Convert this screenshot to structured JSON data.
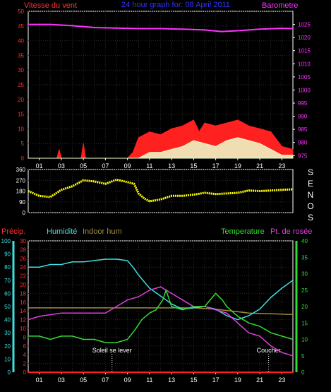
{
  "chart_data": [
    {
      "type": "area",
      "title": "24 hour graph for: 08 April 2011",
      "left_axis": {
        "label": "Vitesse du vent",
        "ticks": [
          0,
          5,
          10,
          15,
          20,
          25,
          30,
          35,
          40,
          45,
          50
        ],
        "ylim": [
          0,
          50
        ],
        "color": "#ff3030"
      },
      "right_axis": {
        "label": "Barometre",
        "ticks": [
          975,
          980,
          985,
          990,
          995,
          1000,
          1005,
          1010,
          1015,
          1020,
          1025
        ],
        "ylim": [
          974,
          1030
        ],
        "color": "#ff33ff"
      },
      "x_ticks": [
        "01",
        "03",
        "05",
        "07",
        "09",
        "11",
        "13",
        "15",
        "17",
        "19",
        "21",
        "23"
      ],
      "grid": true,
      "series": [
        {
          "unit": "hPa",
          "color": "#ff33ff",
          "x": [
            0,
            2,
            4,
            6,
            8,
            10,
            12,
            14,
            16,
            17.5,
            19,
            21,
            23,
            24
          ],
          "values": [
            1025,
            1025,
            1024.5,
            1023.8,
            1023.6,
            1023.4,
            1023.4,
            1023.2,
            1022.9,
            1022.3,
            1022.6,
            1023.2,
            1023.5,
            1023.4
          ]
        },
        {
          "unit": "gust",
          "color": "#ff2020",
          "x": [
            0,
            1.5,
            2.6,
            2.8,
            3.0,
            4.8,
            5.0,
            5.2,
            9.0,
            9.5,
            10,
            11,
            12,
            13,
            14,
            15,
            15.5,
            16,
            17,
            18,
            19,
            20,
            21,
            22,
            23,
            24
          ],
          "values": [
            0,
            0,
            0,
            3,
            0,
            0,
            5,
            0,
            0,
            2,
            7,
            9,
            8,
            10,
            11,
            13,
            9,
            12,
            11,
            12,
            13,
            11,
            10,
            9,
            4,
            3
          ]
        },
        {
          "unit": "avg",
          "color": "#eeffcc",
          "x": [
            0,
            10,
            11,
            12,
            13,
            14,
            15,
            16,
            17,
            18,
            19,
            20,
            21,
            22,
            23,
            24
          ],
          "values": [
            0,
            0,
            2,
            2,
            3,
            4,
            6,
            5,
            4,
            6,
            7,
            6,
            5,
            3,
            1,
            1
          ]
        }
      ]
    },
    {
      "type": "line",
      "title": "",
      "left_axis": {
        "ticks": [
          0,
          90,
          180,
          270,
          360
        ],
        "ylim": [
          0,
          360
        ],
        "color": "#ffffff"
      },
      "right_label": [
        "S",
        "E",
        "N",
        "O",
        "S"
      ],
      "grid": true,
      "series": [
        {
          "unit": "deg",
          "color": "#ffff00",
          "x": [
            0,
            1,
            2,
            3,
            4,
            5,
            6,
            7,
            8,
            9,
            9.6,
            10,
            10.5,
            11,
            12,
            13,
            14,
            15,
            16,
            17,
            18,
            19,
            20,
            21,
            22,
            23,
            24
          ],
          "values": [
            180,
            140,
            130,
            190,
            220,
            270,
            260,
            240,
            275,
            255,
            240,
            160,
            120,
            95,
            110,
            140,
            140,
            150,
            165,
            155,
            160,
            165,
            185,
            180,
            185,
            190,
            195
          ]
        }
      ]
    },
    {
      "type": "line",
      "axis_labels": {
        "precip": "Précip.",
        "humidity": "Humidité",
        "indoor_hum": "Indoor hum",
        "temperature": "Temperature",
        "dewpoint": "Pt. de rosée"
      },
      "axis_precip": {
        "ticks": [
          0,
          2,
          4,
          6,
          8,
          10,
          12,
          14,
          16,
          18,
          20,
          22,
          24,
          26,
          28,
          30
        ],
        "ylim": [
          0,
          30
        ],
        "color": "#ff3030"
      },
      "axis_humidity": {
        "ticks": [
          0,
          10,
          20,
          30,
          40,
          50,
          60,
          70,
          80,
          90,
          100
        ],
        "ylim": [
          0,
          100
        ],
        "color": "#40e0e0"
      },
      "axis_temperature": {
        "ticks": [
          0,
          5,
          10,
          15,
          20,
          25,
          30,
          35,
          40
        ],
        "ylim": [
          0,
          40
        ],
        "color": "#33dd33"
      },
      "annotations": [
        {
          "x": 7.6,
          "text": "Soleil se lever"
        },
        {
          "x": 21.8,
          "text": "Coucher"
        }
      ],
      "grid": true,
      "series": [
        {
          "unit": "humidity",
          "color": "#40e0e0",
          "x": [
            0,
            1,
            2,
            3,
            4,
            5,
            6,
            7,
            8,
            9,
            9.5,
            10,
            11,
            12,
            12.5,
            13,
            14,
            15,
            16,
            17,
            18,
            19,
            20,
            21,
            22,
            23,
            24
          ],
          "values": [
            80,
            80,
            82,
            82,
            84,
            84,
            85,
            86,
            86,
            85,
            80,
            74,
            64,
            58,
            55,
            52,
            48,
            49,
            50,
            48,
            43,
            40,
            43,
            48,
            57,
            64,
            70
          ]
        },
        {
          "unit": "indoor",
          "color": "#a08c3c",
          "x": [
            0,
            8,
            10,
            15,
            17,
            18,
            19,
            20,
            24
          ],
          "values": [
            49,
            49,
            49,
            49,
            48,
            47,
            46,
            45,
            44
          ]
        },
        {
          "unit": "temperature",
          "color": "#33dd33",
          "x": [
            0,
            1,
            2,
            3,
            4,
            5,
            6,
            7,
            8,
            9,
            9.7,
            10.3,
            11,
            11.6,
            12.2,
            12.5,
            13,
            14,
            15,
            16,
            17,
            17.6,
            18,
            19,
            20,
            21,
            22,
            23,
            24
          ],
          "values": [
            11,
            11,
            10,
            11,
            11,
            10,
            10,
            9,
            9,
            10,
            13,
            16,
            18,
            19,
            22,
            25,
            20,
            19,
            20,
            20,
            24,
            22,
            20,
            17,
            15,
            14,
            12,
            11,
            10
          ]
        },
        {
          "unit": "dewpoint",
          "color": "#e040e0",
          "x": [
            0,
            1,
            3,
            5,
            7,
            8,
            9,
            10,
            11,
            12,
            13,
            14,
            15,
            16,
            17,
            18,
            19,
            20,
            21,
            22,
            23,
            24
          ],
          "values": [
            16,
            17,
            18,
            18,
            18,
            20,
            22,
            23,
            25,
            26,
            24,
            22,
            20,
            20,
            19,
            18,
            15,
            12,
            11,
            8,
            6,
            5
          ]
        },
        {
          "unit": "precip",
          "color": "#ff2020",
          "x": [
            0,
            24
          ],
          "values": [
            0,
            0
          ]
        }
      ]
    }
  ]
}
